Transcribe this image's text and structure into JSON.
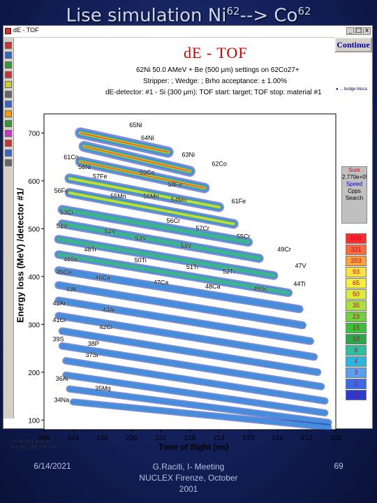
{
  "slide": {
    "title_main": "Lise simulation Ni",
    "title_sup1": "62",
    "title_mid": "--> Co",
    "title_sup2": "62",
    "footer_date": "6/14/2021",
    "footer_center_line1": "G.Raciti, I- Meeting",
    "footer_center_line2": "NUCLEX Firenze, October",
    "footer_center_line3": "2001",
    "footer_page": "69"
  },
  "window": {
    "title": "dE - TOF",
    "minimize_label": "_",
    "maximize_label": "□",
    "close_label": "x",
    "continue_label": "Continue"
  },
  "toolbar": {
    "icons": [
      "save-icon",
      "print-icon",
      "zoom-icon",
      "close-x-icon",
      "settings-icon",
      "list-icon",
      "triangle-icon",
      "color-icon",
      "grid-icon",
      "info-icon",
      "target-icon",
      "plot-icon",
      "options-icon"
    ]
  },
  "chart_info": {
    "heading": "dE - TOF",
    "line1": "62Ni 50.0 AMeV + Be (500 μm)   settings on 62Co27+",
    "line2": "Stripper: ; Wedge: ; Brho acceptance: ± 1.00%",
    "line3": "dE-detector: #1 - Si (300 μm): TOF start: target;  TOF stop: material #1",
    "legend_note": "● ... bodge bloca"
  },
  "side_panel": {
    "line1": "Sum",
    "line2": "2.770e+05",
    "line3": "Speed",
    "line4": "Cpps",
    "line5": "Search"
  },
  "color_scale": {
    "labels": [
      "500",
      "321",
      "203",
      "93",
      "65",
      "50",
      "35",
      "23",
      "15",
      "10",
      "6",
      "4",
      "3",
      "2",
      "1"
    ],
    "colors": [
      "#ff2a2a",
      "#ff6a3a",
      "#ffa23a",
      "#ffe23a",
      "#f5ee3a",
      "#d8ee3a",
      "#a8e23a",
      "#6fd23a",
      "#3cbf3a",
      "#2aa84a",
      "#2ac0a0",
      "#2ab8e0",
      "#5aa0f0",
      "#3a6ae8",
      "#2a3ad0"
    ]
  },
  "chart_data": {
    "type": "heatmap",
    "xlabel": "Time of flight (ns)",
    "ylabel": "Energy loss (MeV) /detector #1/",
    "x_ticks": [
      248,
      244,
      240,
      236,
      232,
      228,
      224,
      220,
      216,
      212,
      208
    ],
    "y_ticks": [
      100,
      200,
      300,
      400,
      500,
      600,
      700
    ],
    "xlim": [
      248,
      208
    ],
    "ylim": [
      80,
      740
    ],
    "isotope_labels": [
      {
        "text": "65Ni",
        "x": 236.3,
        "y": 712
      },
      {
        "text": "64Ni",
        "x": 234.7,
        "y": 685
      },
      {
        "text": "63Ni",
        "x": 229.1,
        "y": 650
      },
      {
        "text": "62Co",
        "x": 225.0,
        "y": 631
      },
      {
        "text": "61Co",
        "x": 245.3,
        "y": 645
      },
      {
        "text": "58Ni",
        "x": 243.3,
        "y": 625
      },
      {
        "text": "59Co",
        "x": 234.9,
        "y": 613
      },
      {
        "text": "57Fe",
        "x": 241.3,
        "y": 605
      },
      {
        "text": "58Fe",
        "x": 231.0,
        "y": 588
      },
      {
        "text": "56Fe",
        "x": 246.6,
        "y": 575
      },
      {
        "text": "55Mn",
        "x": 238.9,
        "y": 563
      },
      {
        "text": "56Mn",
        "x": 234.4,
        "y": 563
      },
      {
        "text": "54Mn",
        "x": 230.6,
        "y": 556
      },
      {
        "text": "61Fe",
        "x": 222.3,
        "y": 553
      },
      {
        "text": "53Cr",
        "x": 245.8,
        "y": 530
      },
      {
        "text": "57Cr",
        "x": 227.2,
        "y": 496
      },
      {
        "text": "55Cr",
        "x": 221.6,
        "y": 479
      },
      {
        "text": "56Cr",
        "x": 231.2,
        "y": 512
      },
      {
        "text": "51V",
        "x": 246.3,
        "y": 501
      },
      {
        "text": "52V",
        "x": 239.7,
        "y": 490
      },
      {
        "text": "53V",
        "x": 235.5,
        "y": 476
      },
      {
        "text": "54V",
        "x": 229.3,
        "y": 460
      },
      {
        "text": "49Cr",
        "x": 216.0,
        "y": 452
      },
      {
        "text": "48Ti",
        "x": 242.5,
        "y": 452
      },
      {
        "text": "50Ti",
        "x": 235.6,
        "y": 430
      },
      {
        "text": "51Ti",
        "x": 228.5,
        "y": 416
      },
      {
        "text": "52Ti",
        "x": 223.5,
        "y": 406
      },
      {
        "text": "47V",
        "x": 213.6,
        "y": 418
      },
      {
        "text": "46Sc",
        "x": 245.3,
        "y": 432
      },
      {
        "text": "45Ca",
        "x": 246.3,
        "y": 405
      },
      {
        "text": "46Ca",
        "x": 241.0,
        "y": 393
      },
      {
        "text": "47Ca",
        "x": 233.0,
        "y": 383
      },
      {
        "text": "48Ca",
        "x": 225.9,
        "y": 375
      },
      {
        "text": "49Sc",
        "x": 219.3,
        "y": 370
      },
      {
        "text": "44Ti",
        "x": 213.8,
        "y": 380
      },
      {
        "text": "43K",
        "x": 245.0,
        "y": 369
      },
      {
        "text": "42Ar",
        "x": 246.8,
        "y": 340
      },
      {
        "text": "43Ar",
        "x": 240.0,
        "y": 326
      },
      {
        "text": "41Cl",
        "x": 246.8,
        "y": 305
      },
      {
        "text": "42Cl",
        "x": 240.4,
        "y": 290
      },
      {
        "text": "39S",
        "x": 246.8,
        "y": 265
      },
      {
        "text": "38P",
        "x": 242.0,
        "y": 255
      },
      {
        "text": "37Si",
        "x": 242.3,
        "y": 232
      },
      {
        "text": "36Al",
        "x": 246.4,
        "y": 182
      },
      {
        "text": "35Mg",
        "x": 241.0,
        "y": 162
      },
      {
        "text": "34Na",
        "x": 246.6,
        "y": 138
      }
    ],
    "bands": [
      {
        "x0": 243.0,
        "y0": 700,
        "x1": 231.0,
        "y1": 660,
        "intensity": 1.0
      },
      {
        "x0": 242.5,
        "y0": 672,
        "x1": 228.0,
        "y1": 620,
        "intensity": 0.95
      },
      {
        "x0": 243.0,
        "y0": 640,
        "x1": 226.0,
        "y1": 585,
        "intensity": 0.85
      },
      {
        "x0": 244.5,
        "y0": 605,
        "x1": 224.0,
        "y1": 545,
        "intensity": 0.75
      },
      {
        "x0": 244.5,
        "y0": 575,
        "x1": 222.0,
        "y1": 510,
        "intensity": 0.7
      },
      {
        "x0": 245.5,
        "y0": 540,
        "x1": 220.0,
        "y1": 472,
        "intensity": 0.6
      },
      {
        "x0": 245.5,
        "y0": 510,
        "x1": 218.5,
        "y1": 438,
        "intensity": 0.55
      },
      {
        "x0": 246.0,
        "y0": 478,
        "x1": 216.5,
        "y1": 402,
        "intensity": 0.5
      },
      {
        "x0": 246.0,
        "y0": 446,
        "x1": 214.5,
        "y1": 366,
        "intensity": 0.45
      },
      {
        "x0": 246.0,
        "y0": 413,
        "x1": 213.0,
        "y1": 332,
        "intensity": 0.4
      },
      {
        "x0": 246.0,
        "y0": 382,
        "x1": 212.5,
        "y1": 298,
        "intensity": 0.36
      },
      {
        "x0": 246.0,
        "y0": 350,
        "x1": 211.5,
        "y1": 265,
        "intensity": 0.32
      },
      {
        "x0": 246.0,
        "y0": 318,
        "x1": 211.0,
        "y1": 232,
        "intensity": 0.3
      },
      {
        "x0": 245.5,
        "y0": 286,
        "x1": 210.5,
        "y1": 200,
        "intensity": 0.28
      },
      {
        "x0": 245.5,
        "y0": 255,
        "x1": 210.0,
        "y1": 170,
        "intensity": 0.25
      },
      {
        "x0": 245.0,
        "y0": 224,
        "x1": 209.5,
        "y1": 140,
        "intensity": 0.22
      },
      {
        "x0": 245.0,
        "y0": 194,
        "x1": 209.5,
        "y1": 115,
        "intensity": 0.2
      },
      {
        "x0": 244.5,
        "y0": 165,
        "x1": 209.0,
        "y1": 95,
        "intensity": 0.18
      },
      {
        "x0": 244.0,
        "y0": 138,
        "x1": 209.0,
        "y1": 85,
        "intensity": 0.15
      }
    ]
  },
  "stamp": {
    "line1": "07-06-2001  14:22:16",
    "line2": "F:\\LISE\\...\\DE-TOF  1.0 C..."
  }
}
